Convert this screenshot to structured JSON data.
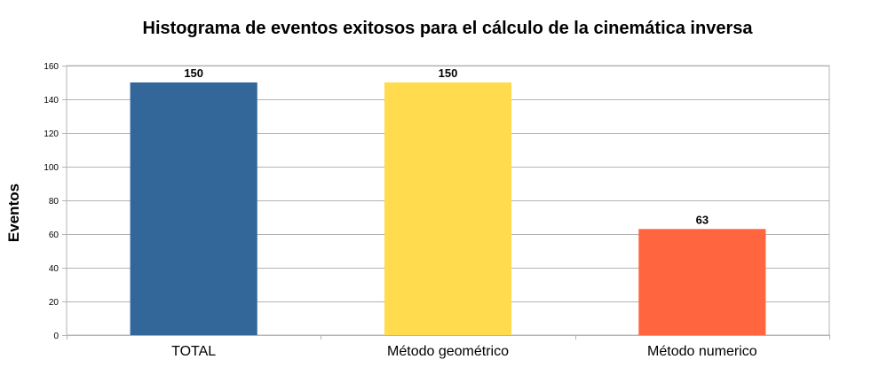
{
  "chart_data": {
    "type": "bar",
    "title": "Histograma de eventos exitosos para el cálculo de la cinemática inversa",
    "xlabel": "",
    "ylabel": "Eventos",
    "categories": [
      "TOTAL",
      "Método geométrico",
      "Método numerico"
    ],
    "values": [
      150,
      150,
      63
    ],
    "data_labels": [
      "150",
      "150",
      "63"
    ],
    "colors": [
      "#336699",
      "#ffdb4d",
      "#ff6640"
    ],
    "ylim": [
      0,
      160
    ],
    "yticks": [
      0,
      20,
      40,
      60,
      80,
      100,
      120,
      140,
      160
    ],
    "ytick_labels": [
      "0",
      "20",
      "40",
      "60",
      "80",
      "100",
      "120",
      "140",
      "160"
    ],
    "grid": true,
    "legend": "none"
  }
}
